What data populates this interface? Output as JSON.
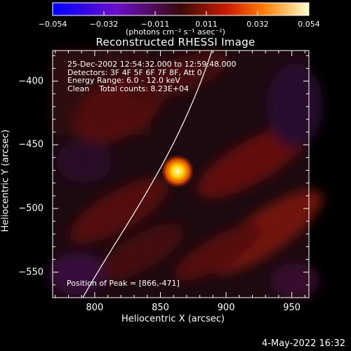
{
  "colorbar": {
    "ticks": [
      "−0.054",
      "−0.032",
      "−0.011",
      "0.011",
      "0.032",
      "0.054"
    ],
    "units": "(photons cm⁻² s⁻¹ asec⁻²)"
  },
  "chart_data": {
    "type": "heatmap",
    "title": "Reconstructed RHESSI Image",
    "xlabel": "Heliocentric X (arcsec)",
    "ylabel": "Heliocentric Y (arcsec)",
    "xlim": [
      768,
      963
    ],
    "ylim": [
      -570,
      -376
    ],
    "xticks": [
      800,
      850,
      900,
      950
    ],
    "yticks": [
      -400,
      -450,
      -500,
      -550
    ],
    "colorbar_range": [
      -0.054,
      0.054
    ],
    "peak": {
      "x": 866,
      "y": -471
    },
    "info_lines": [
      "25-Dec-2002 12:54:32.000 to 12:59:48.000",
      "Detectors: 3F 4F 5F 6F 7F 8F, Att 0",
      "Energy Range: 6.0 - 12.0 keV",
      "Clean    Total counts: 8.23E+04"
    ],
    "peak_label": "Position of Peak = [866,-471]"
  },
  "timestamp": "4-May-2022 16:32"
}
